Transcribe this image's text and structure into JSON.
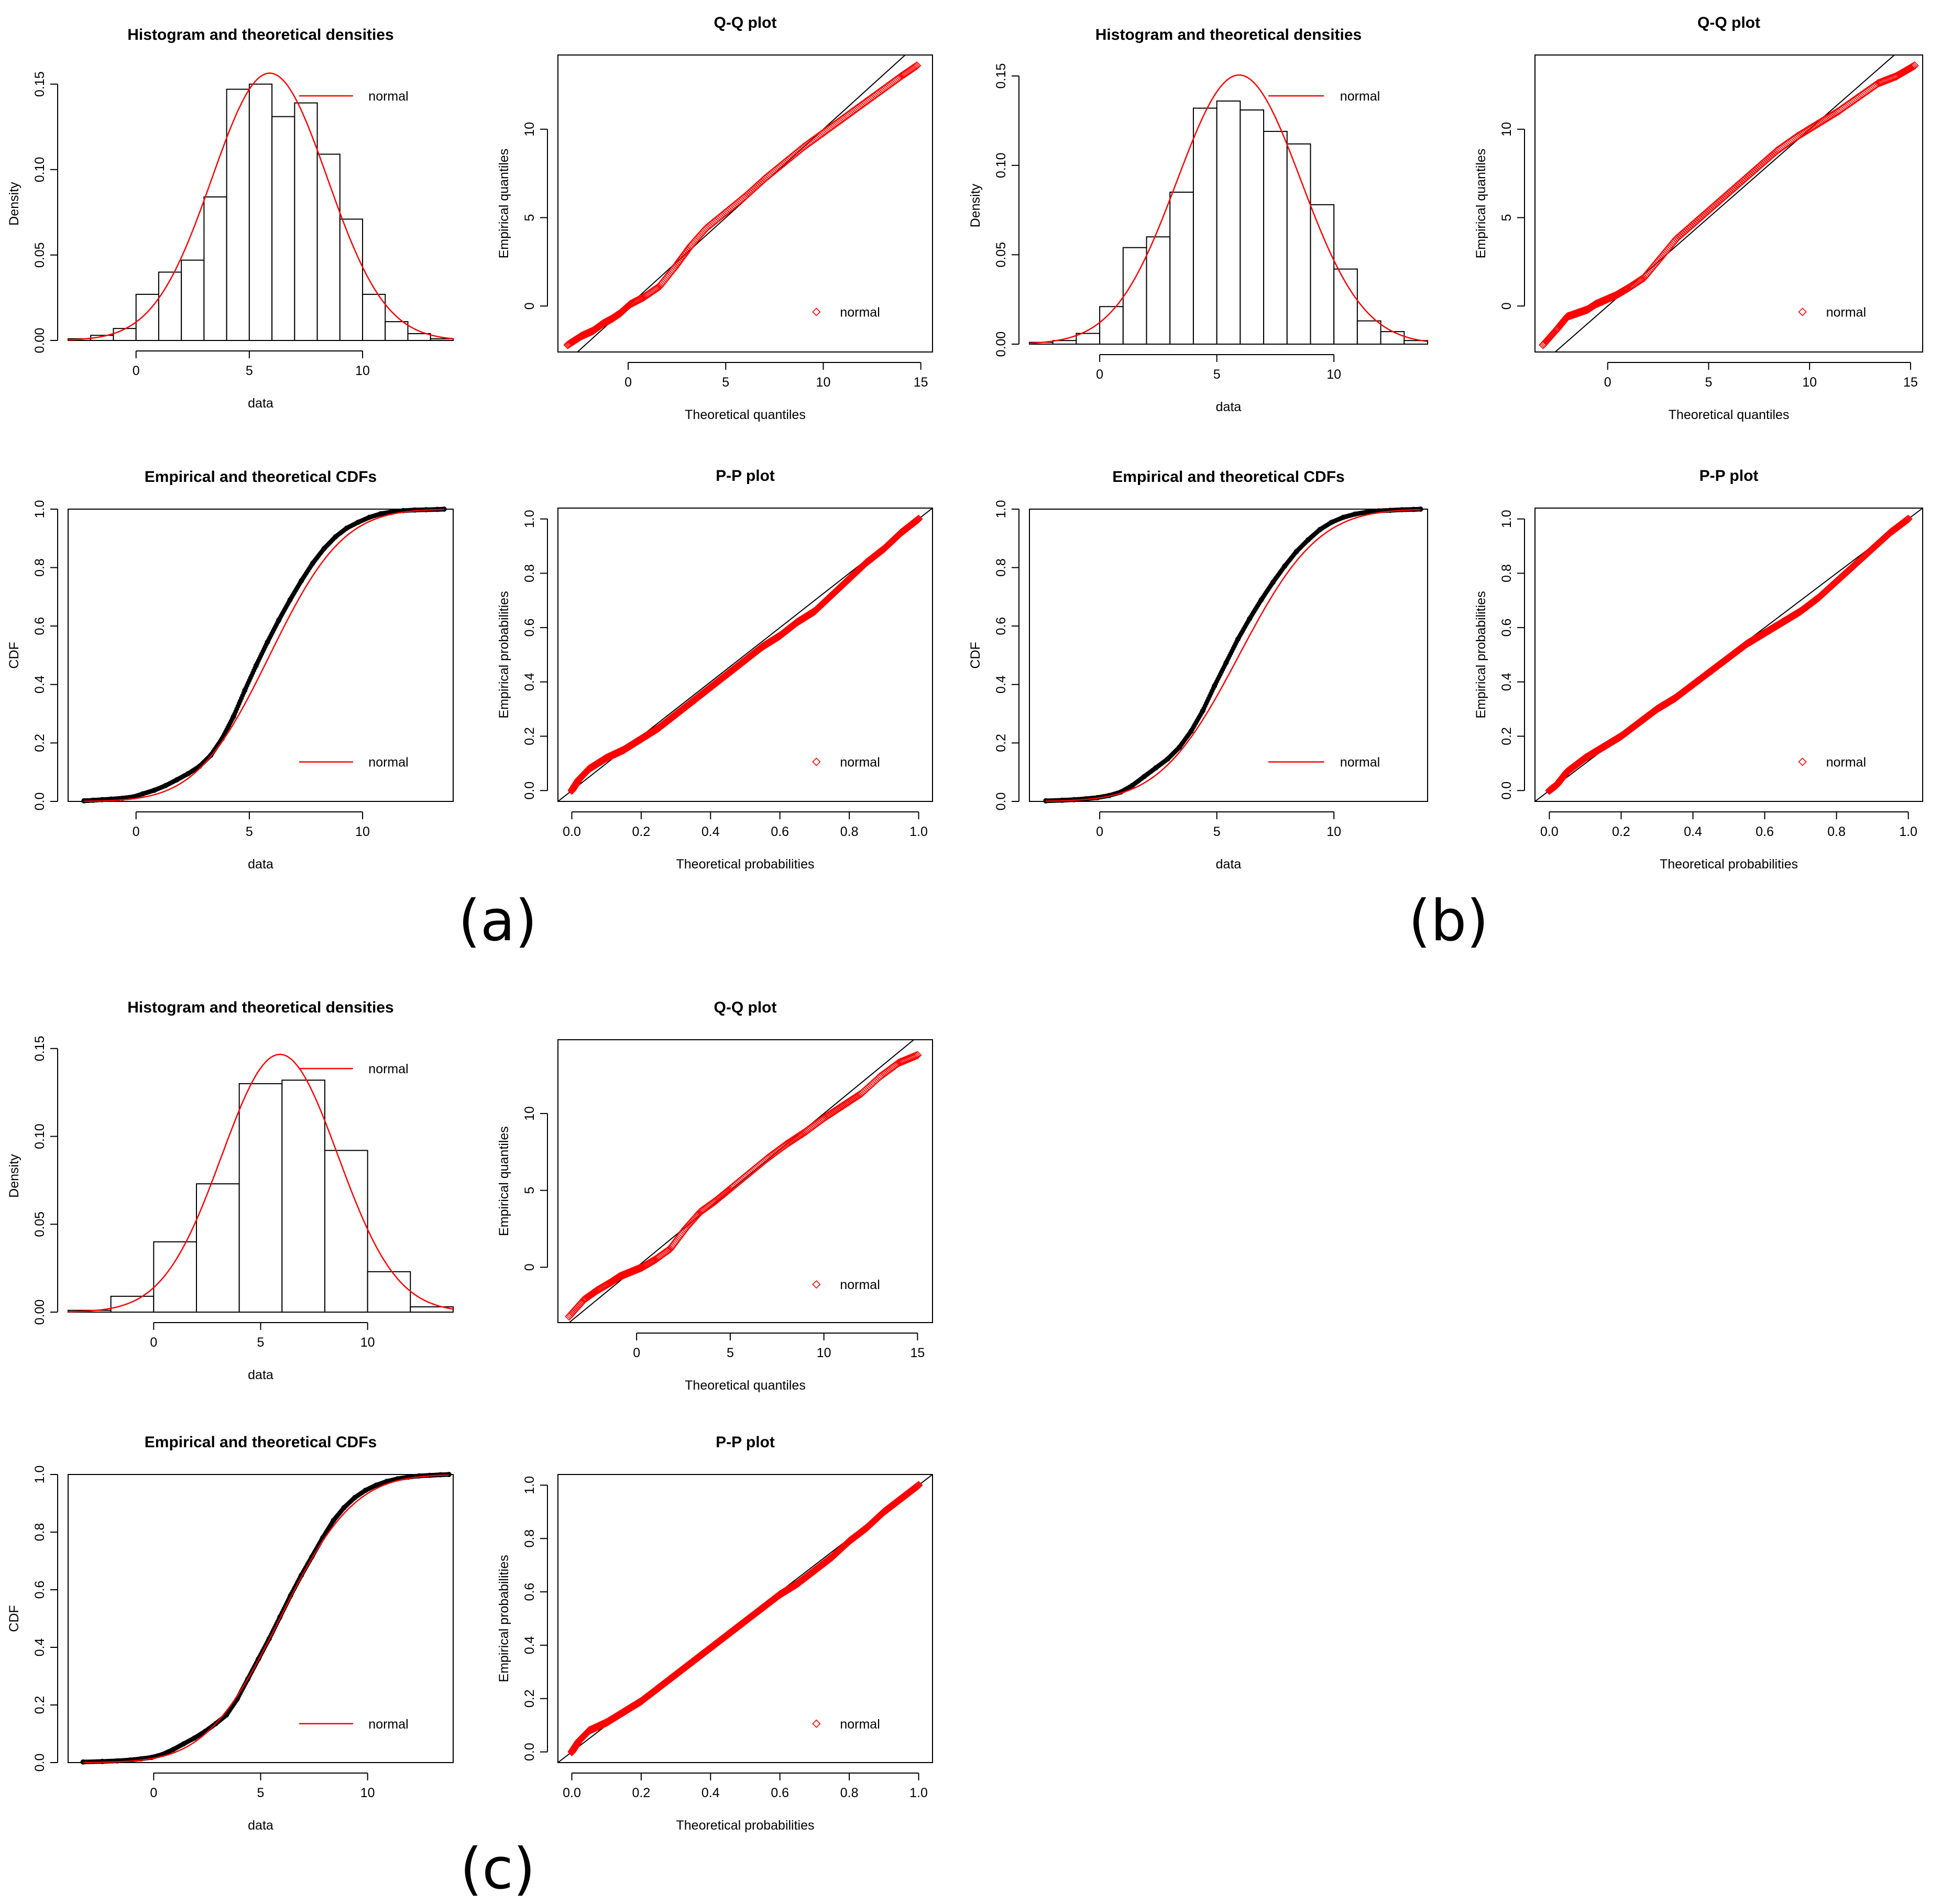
{
  "figure": {
    "panel_labels": [
      "(a)",
      "(b)",
      "(c)"
    ]
  },
  "colors": {
    "fit": "#ff0000",
    "empirical": "#000000",
    "axis": "#000000",
    "identity_line": "#000000"
  },
  "chart_data": [
    {
      "panel": "(a)",
      "type": "histogram",
      "title": "Histogram and theoretical densities",
      "xlabel": "data",
      "ylabel": "Density",
      "xlim": [
        -3,
        14
      ],
      "ylim": [
        0,
        0.16
      ],
      "x_ticks": [
        0,
        5,
        10
      ],
      "y_ticks": [
        0.0,
        0.05,
        0.1,
        0.15
      ],
      "bin_edges": [
        -3,
        -2,
        -1,
        0,
        1,
        2,
        3,
        4,
        5,
        6,
        7,
        8,
        9,
        10,
        11,
        12,
        13,
        14
      ],
      "values": [
        0.001,
        0.003,
        0.007,
        0.027,
        0.04,
        0.047,
        0.084,
        0.147,
        0.15,
        0.131,
        0.139,
        0.109,
        0.071,
        0.027,
        0.011,
        0.004,
        0.001
      ],
      "density_fit": {
        "dist": "normal",
        "mean": 5.9,
        "sd": 2.55
      },
      "legend": [
        "normal"
      ]
    },
    {
      "panel": "(a)",
      "type": "scatter",
      "title": "Q-Q plot",
      "xlabel": "Theoretical quantiles",
      "ylabel": "Empirical quantiles",
      "xlim": [
        -3.6,
        15.6
      ],
      "ylim": [
        -2.6,
        14.2
      ],
      "x_ticks": [
        0,
        5,
        10,
        15
      ],
      "y_ticks": [
        0,
        5,
        10
      ],
      "x": [
        -3.1,
        -2.4,
        -1.8,
        -1.3,
        -0.8,
        -0.4,
        0.1,
        0.8,
        1.6,
        2.4,
        3.2,
        4.0,
        5.0,
        6.0,
        7.0,
        8.0,
        9.0,
        10.0,
        11.0,
        12.0,
        13.0,
        14.0,
        14.8
      ],
      "y": [
        -2.2,
        -1.7,
        -1.4,
        -1.0,
        -0.7,
        -0.4,
        0.1,
        0.5,
        1.1,
        2.2,
        3.4,
        4.4,
        5.3,
        6.2,
        7.2,
        8.1,
        9.0,
        9.8,
        10.6,
        11.4,
        12.2,
        13.0,
        13.6
      ],
      "reference_line": "identity",
      "legend": [
        "normal"
      ]
    },
    {
      "panel": "(a)",
      "type": "line",
      "title": "Empirical and theoretical CDFs",
      "xlabel": "data",
      "ylabel": "CDF",
      "xlim": [
        -3,
        14
      ],
      "ylim": [
        0,
        1.0
      ],
      "x_ticks": [
        0,
        5,
        10
      ],
      "y_ticks": [
        0.0,
        0.2,
        0.4,
        0.6,
        0.8,
        1.0
      ],
      "x": [
        -2.3,
        -1.9,
        -1.5,
        -1.1,
        -0.6,
        -0.1,
        0.3,
        0.8,
        1.3,
        1.8,
        2.3,
        2.8,
        3.3,
        3.8,
        4.3,
        4.8,
        5.3,
        5.8,
        6.3,
        6.8,
        7.3,
        7.8,
        8.3,
        8.8,
        9.3,
        9.8,
        10.3,
        10.8,
        11.3,
        11.8,
        12.3,
        12.8,
        13.3,
        13.6
      ],
      "y": [
        0.002,
        0.004,
        0.006,
        0.008,
        0.011,
        0.016,
        0.026,
        0.038,
        0.054,
        0.074,
        0.095,
        0.12,
        0.158,
        0.215,
        0.29,
        0.38,
        0.465,
        0.545,
        0.62,
        0.69,
        0.755,
        0.815,
        0.865,
        0.905,
        0.935,
        0.955,
        0.972,
        0.984,
        0.991,
        0.995,
        0.997,
        0.998,
        0.999,
        1.0
      ],
      "cdf_fit": {
        "dist": "normal",
        "mean": 5.9,
        "sd": 2.55
      },
      "legend": [
        "normal"
      ]
    },
    {
      "panel": "(a)",
      "type": "scatter",
      "title": "P-P plot",
      "xlabel": "Theoretical probabilities",
      "ylabel": "Empirical probabilities",
      "xlim": [
        -0.04,
        1.04
      ],
      "ylim": [
        -0.04,
        1.04
      ],
      "x_ticks": [
        0.0,
        0.2,
        0.4,
        0.6,
        0.8,
        1.0
      ],
      "y_ticks": [
        0.0,
        0.2,
        0.4,
        0.6,
        0.8,
        1.0
      ],
      "x": [
        0.0,
        0.02,
        0.05,
        0.1,
        0.15,
        0.2,
        0.25,
        0.3,
        0.35,
        0.4,
        0.45,
        0.5,
        0.55,
        0.6,
        0.65,
        0.7,
        0.75,
        0.8,
        0.85,
        0.9,
        0.95,
        1.0
      ],
      "y": [
        0.0,
        0.04,
        0.08,
        0.12,
        0.15,
        0.19,
        0.23,
        0.28,
        0.33,
        0.38,
        0.43,
        0.48,
        0.53,
        0.57,
        0.62,
        0.66,
        0.72,
        0.78,
        0.84,
        0.89,
        0.95,
        1.0
      ],
      "reference_line": "identity",
      "legend": [
        "normal"
      ]
    },
    {
      "panel": "(b)",
      "type": "histogram",
      "title": "Histogram and theoretical densities",
      "xlabel": "data",
      "ylabel": "Density",
      "xlim": [
        -3,
        14
      ],
      "ylim": [
        0,
        0.155
      ],
      "x_ticks": [
        0,
        5,
        10
      ],
      "y_ticks": [
        0.0,
        0.05,
        0.1,
        0.15
      ],
      "bin_edges": [
        -3,
        -2,
        -1,
        0,
        1,
        2,
        3,
        4,
        5,
        6,
        7,
        8,
        9,
        10,
        11,
        12,
        13,
        14
      ],
      "values": [
        0.001,
        0.002,
        0.006,
        0.021,
        0.054,
        0.06,
        0.085,
        0.132,
        0.136,
        0.131,
        0.119,
        0.112,
        0.078,
        0.042,
        0.013,
        0.007,
        0.002
      ],
      "density_fit": {
        "dist": "normal",
        "mean": 5.95,
        "sd": 2.65
      },
      "legend": [
        "normal"
      ]
    },
    {
      "panel": "(b)",
      "type": "scatter",
      "title": "Q-Q plot",
      "xlabel": "Theoretical quantiles",
      "ylabel": "Empirical quantiles",
      "xlim": [
        -3.6,
        15.6
      ],
      "ylim": [
        -2.6,
        14.2
      ],
      "x_ticks": [
        0,
        5,
        10,
        15
      ],
      "y_ticks": [
        0,
        5,
        10
      ],
      "x": [
        -3.2,
        -2.5,
        -2.0,
        -1.5,
        -1.0,
        -0.6,
        -0.2,
        0.4,
        1.0,
        1.8,
        2.6,
        3.4,
        4.4,
        5.4,
        6.4,
        7.4,
        8.4,
        9.4,
        10.4,
        11.4,
        12.4,
        13.4,
        14.3,
        15.2
      ],
      "y": [
        -2.2,
        -1.3,
        -0.6,
        -0.4,
        -0.2,
        0.1,
        0.3,
        0.6,
        1.0,
        1.6,
        2.7,
        3.8,
        4.8,
        5.8,
        6.8,
        7.8,
        8.8,
        9.6,
        10.3,
        11.0,
        11.8,
        12.6,
        13.0,
        13.6
      ],
      "reference_line": "identity",
      "legend": [
        "normal"
      ]
    },
    {
      "panel": "(b)",
      "type": "line",
      "title": "Empirical and theoretical CDFs",
      "xlabel": "data",
      "ylabel": "CDF",
      "xlim": [
        -3,
        14
      ],
      "ylim": [
        0,
        1.0
      ],
      "x_ticks": [
        0,
        5,
        10
      ],
      "y_ticks": [
        0.0,
        0.2,
        0.4,
        0.6,
        0.8,
        1.0
      ],
      "x": [
        -2.3,
        -1.6,
        -1.1,
        -0.6,
        -0.1,
        0.4,
        0.9,
        1.4,
        1.9,
        2.4,
        2.9,
        3.4,
        3.9,
        4.4,
        4.9,
        5.4,
        5.9,
        6.4,
        6.9,
        7.4,
        7.9,
        8.4,
        8.9,
        9.4,
        9.9,
        10.4,
        10.9,
        11.4,
        11.9,
        12.4,
        12.9,
        13.4,
        13.7
      ],
      "y": [
        0.002,
        0.004,
        0.006,
        0.009,
        0.013,
        0.02,
        0.032,
        0.055,
        0.085,
        0.115,
        0.145,
        0.185,
        0.24,
        0.31,
        0.395,
        0.475,
        0.555,
        0.625,
        0.69,
        0.75,
        0.805,
        0.855,
        0.895,
        0.93,
        0.955,
        0.972,
        0.983,
        0.99,
        0.994,
        0.996,
        0.998,
        0.999,
        1.0
      ],
      "cdf_fit": {
        "dist": "normal",
        "mean": 5.95,
        "sd": 2.65
      },
      "legend": [
        "normal"
      ]
    },
    {
      "panel": "(b)",
      "type": "scatter",
      "title": "P-P plot",
      "xlabel": "Theoretical probabilities",
      "ylabel": "Empirical probabilities",
      "xlim": [
        -0.04,
        1.04
      ],
      "ylim": [
        -0.04,
        1.04
      ],
      "x_ticks": [
        0.0,
        0.2,
        0.4,
        0.6,
        0.8,
        1.0
      ],
      "y_ticks": [
        0.0,
        0.2,
        0.4,
        0.6,
        0.8,
        1.0
      ],
      "x": [
        0.0,
        0.02,
        0.05,
        0.1,
        0.15,
        0.2,
        0.25,
        0.3,
        0.35,
        0.4,
        0.45,
        0.5,
        0.55,
        0.6,
        0.65,
        0.7,
        0.75,
        0.8,
        0.85,
        0.9,
        0.95,
        1.0
      ],
      "y": [
        0.0,
        0.02,
        0.07,
        0.12,
        0.16,
        0.2,
        0.25,
        0.3,
        0.34,
        0.39,
        0.44,
        0.49,
        0.54,
        0.58,
        0.62,
        0.66,
        0.71,
        0.77,
        0.83,
        0.89,
        0.95,
        1.0
      ],
      "reference_line": "identity",
      "legend": [
        "normal"
      ]
    },
    {
      "panel": "(c)",
      "type": "histogram",
      "title": "Histogram and theoretical densities",
      "xlabel": "data",
      "ylabel": "Density",
      "xlim": [
        -4,
        14
      ],
      "ylim": [
        0,
        0.155
      ],
      "x_ticks": [
        0,
        5,
        10
      ],
      "y_ticks": [
        0.0,
        0.05,
        0.1,
        0.15
      ],
      "bin_edges": [
        -4,
        -2,
        0,
        2,
        4,
        6,
        8,
        10,
        12,
        14
      ],
      "values": [
        0.001,
        0.009,
        0.04,
        0.073,
        0.13,
        0.132,
        0.092,
        0.023,
        0.003
      ],
      "density_fit": {
        "dist": "normal",
        "mean": 5.9,
        "sd": 2.72
      },
      "legend": [
        "normal"
      ]
    },
    {
      "panel": "(c)",
      "type": "scatter",
      "title": "Q-Q plot",
      "xlabel": "Theoretical quantiles",
      "ylabel": "Empirical quantiles",
      "xlim": [
        -4.2,
        15.8
      ],
      "ylim": [
        -3.6,
        14.8
      ],
      "x_ticks": [
        0,
        5,
        10,
        15
      ],
      "y_ticks": [
        0,
        5,
        10
      ],
      "x": [
        -3.6,
        -2.8,
        -2.1,
        -1.4,
        -0.9,
        -0.3,
        0.3,
        1.0,
        1.8,
        2.6,
        3.4,
        4.2,
        5.0,
        6.0,
        7.0,
        8.0,
        9.0,
        10.0,
        11.0,
        12.0,
        13.0,
        14.0,
        15.0
      ],
      "y": [
        -3.2,
        -2.1,
        -1.5,
        -1.0,
        -0.6,
        -0.3,
        0.0,
        0.5,
        1.2,
        2.5,
        3.6,
        4.3,
        5.1,
        6.1,
        7.1,
        8.0,
        8.8,
        9.7,
        10.5,
        11.3,
        12.4,
        13.3,
        13.8
      ],
      "reference_line": "identity",
      "legend": [
        "normal"
      ]
    },
    {
      "panel": "(c)",
      "type": "line",
      "title": "Empirical and theoretical CDFs",
      "xlabel": "data",
      "ylabel": "CDF",
      "xlim": [
        -4,
        14
      ],
      "ylim": [
        0,
        1.0
      ],
      "x_ticks": [
        0,
        5,
        10
      ],
      "y_ticks": [
        0.0,
        0.2,
        0.4,
        0.6,
        0.8,
        1.0
      ],
      "x": [
        -3.3,
        -2.4,
        -1.7,
        -1.1,
        -0.6,
        -0.1,
        0.4,
        0.9,
        1.4,
        1.9,
        2.4,
        2.9,
        3.4,
        3.9,
        4.4,
        4.9,
        5.4,
        5.9,
        6.4,
        6.9,
        7.4,
        7.9,
        8.4,
        8.9,
        9.4,
        9.9,
        10.4,
        10.9,
        11.4,
        11.9,
        12.4,
        12.9,
        13.4,
        13.8
      ],
      "y": [
        0.002,
        0.004,
        0.006,
        0.009,
        0.013,
        0.018,
        0.028,
        0.045,
        0.065,
        0.085,
        0.108,
        0.135,
        0.165,
        0.22,
        0.29,
        0.36,
        0.43,
        0.505,
        0.58,
        0.65,
        0.715,
        0.78,
        0.84,
        0.885,
        0.92,
        0.945,
        0.963,
        0.976,
        0.985,
        0.991,
        0.995,
        0.997,
        0.999,
        1.0
      ],
      "cdf_fit": {
        "dist": "normal",
        "mean": 5.9,
        "sd": 2.72
      },
      "legend": [
        "normal"
      ]
    },
    {
      "panel": "(c)",
      "type": "scatter",
      "title": "P-P plot",
      "xlabel": "Theoretical probabilities",
      "ylabel": "Empirical probabilities",
      "xlim": [
        -0.04,
        1.04
      ],
      "ylim": [
        -0.04,
        1.04
      ],
      "x_ticks": [
        0.0,
        0.2,
        0.4,
        0.6,
        0.8,
        1.0
      ],
      "y_ticks": [
        0.0,
        0.2,
        0.4,
        0.6,
        0.8,
        1.0
      ],
      "x": [
        0.0,
        0.02,
        0.05,
        0.1,
        0.15,
        0.2,
        0.25,
        0.3,
        0.35,
        0.4,
        0.45,
        0.5,
        0.55,
        0.6,
        0.65,
        0.7,
        0.75,
        0.8,
        0.85,
        0.9,
        0.95,
        1.0
      ],
      "y": [
        0.0,
        0.04,
        0.08,
        0.11,
        0.15,
        0.19,
        0.24,
        0.29,
        0.34,
        0.39,
        0.44,
        0.49,
        0.54,
        0.59,
        0.63,
        0.68,
        0.73,
        0.79,
        0.84,
        0.9,
        0.95,
        1.0
      ],
      "reference_line": "identity",
      "legend": [
        "normal"
      ]
    }
  ]
}
